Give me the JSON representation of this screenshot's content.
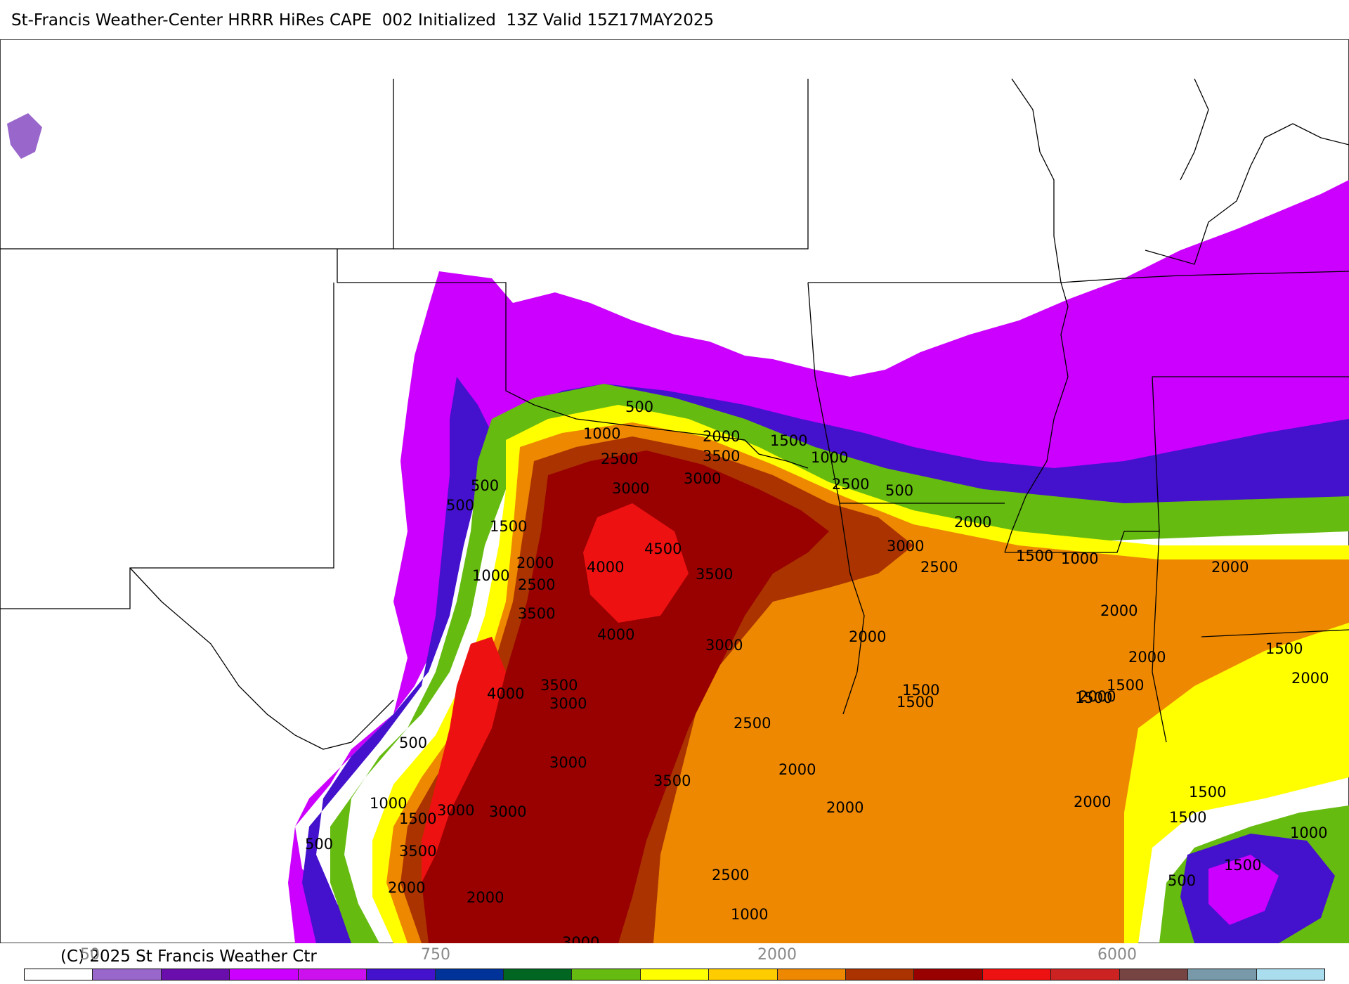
{
  "title": "St-Francis Weather-Center HRRR HiRes CAPE  002 Initialized  13Z Valid 15Z17MAY2025",
  "copyright": "(C) 2025 St Francis Weather Ctr",
  "colorbar": {
    "colors": [
      "#ffffff",
      "#9966cc",
      "#6a0dad",
      "#cc00ff",
      "#cc11ee",
      "#4411cc",
      "#003399",
      "#006622",
      "#66bb11",
      "#ffff00",
      "#ffcc00",
      "#ee8800",
      "#aa3300",
      "#990000",
      "#ee1111",
      "#cc2222",
      "#774444",
      "#7799aa",
      "#aaddee"
    ],
    "tick_labels": [
      "50",
      "750",
      "2000",
      "6000"
    ]
  },
  "fill_colors": {
    "purple": "#cc00ff",
    "blue": "#4411cc",
    "green": "#66bb11",
    "yellow": "#ffff00",
    "orange": "#ee8800",
    "rust": "#aa3300",
    "darkred": "#990000",
    "red": "#ee1111"
  },
  "contour_labels": [
    "500",
    "1000",
    "2000",
    "1500",
    "1000",
    "2500",
    "3500",
    "3000",
    "3000",
    "2500",
    "500",
    "500",
    "500",
    "1500",
    "2000",
    "3000",
    "4500",
    "2000",
    "2500",
    "1500",
    "1000",
    "4000",
    "3500",
    "1000",
    "2500",
    "2000",
    "3500",
    "2000",
    "4000",
    "3000",
    "2000",
    "1500",
    "1500",
    "2000",
    "1500",
    "2000",
    "1500",
    "4000",
    "3500",
    "3000",
    "1500",
    "2000",
    "500",
    "2500",
    "3000",
    "3500",
    "2000",
    "1000",
    "3000",
    "1500",
    "2000",
    "1500",
    "2000",
    "3000",
    "500",
    "1500",
    "3500",
    "2500",
    "1000",
    "2000",
    "1500",
    "500",
    "1000",
    "2000",
    "3000"
  ]
}
